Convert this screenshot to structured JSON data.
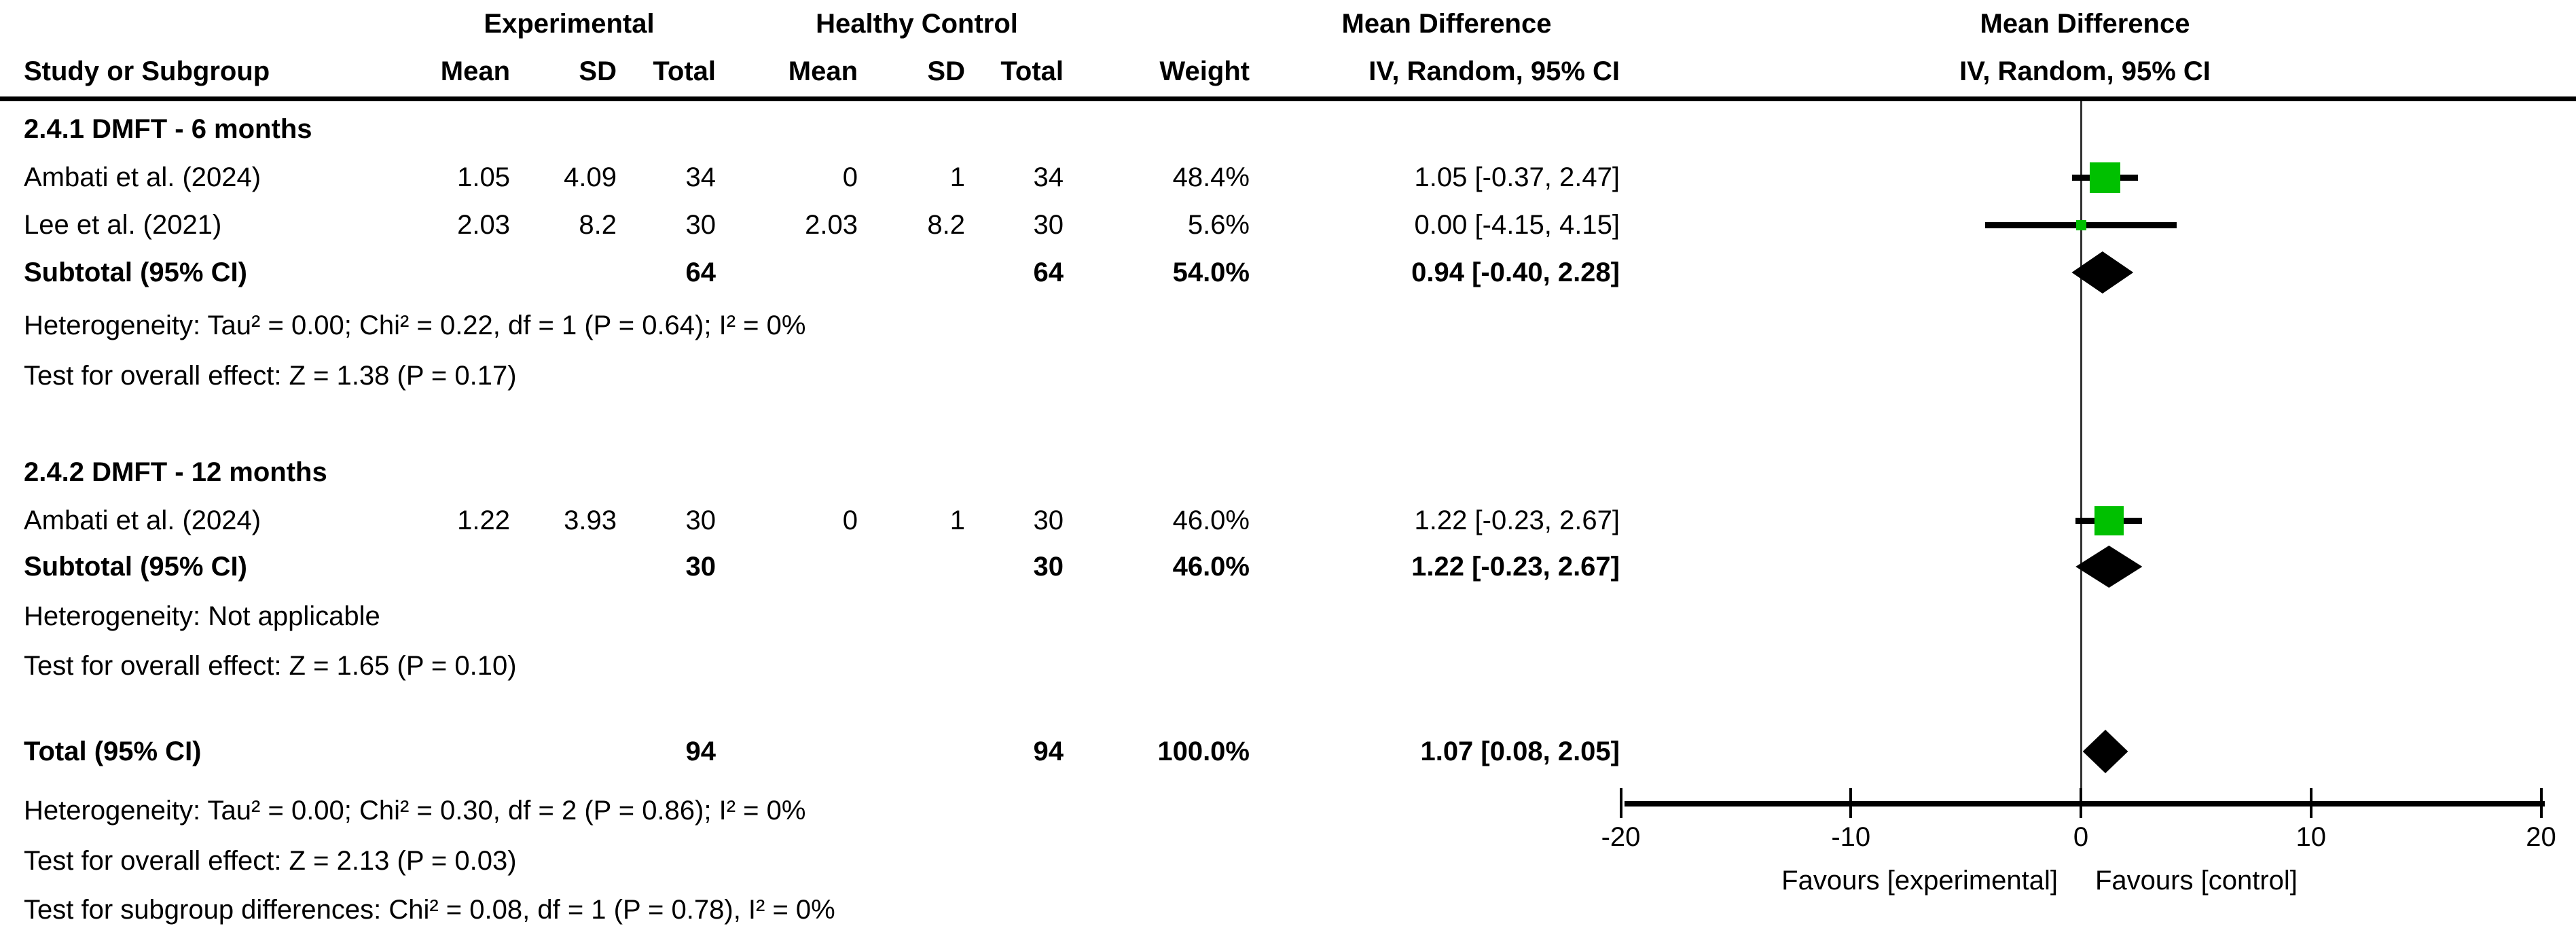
{
  "header": {
    "group_experimental": "Experimental",
    "group_control": "Healthy Control",
    "group_md": "Mean Difference",
    "group_md_plot": "Mean Difference",
    "study": "Study or Subgroup",
    "mean1": "Mean",
    "sd1": "SD",
    "total1": "Total",
    "mean2": "Mean",
    "sd2": "SD",
    "total2": "Total",
    "weight": "Weight",
    "ci": "IV, Random, 95% CI",
    "ci_plot": "IV, Random, 95% CI"
  },
  "table": {
    "groups": [
      {
        "title": "2.4.1 DMFT - 6 months",
        "rows": [
          {
            "name": "Ambati et al. (2024)",
            "cells": [
              "1.05",
              "4.09",
              "34",
              "0",
              "1",
              "34",
              "48.4%",
              "1.05 [-0.37, 2.47]"
            ]
          },
          {
            "name": "Lee et al. (2021)",
            "cells": [
              "2.03",
              "8.2",
              "30",
              "2.03",
              "8.2",
              "30",
              "5.6%",
              "0.00 [-4.15, 4.15]"
            ]
          }
        ],
        "subtotal": {
          "name": "Subtotal (95% CI)",
          "cells": [
            "",
            "",
            "64",
            "",
            "",
            "64",
            "54.0%",
            "0.94 [-0.40, 2.28]"
          ]
        },
        "notes": [
          "Heterogeneity: Tau² = 0.00; Chi² = 0.22, df = 1 (P = 0.64); I² = 0%",
          "Test for overall effect: Z = 1.38 (P = 0.17)"
        ]
      },
      {
        "title": "2.4.2 DMFT - 12 months",
        "rows": [
          {
            "name": "Ambati et al. (2024)",
            "cells": [
              "1.22",
              "3.93",
              "30",
              "0",
              "1",
              "30",
              "46.0%",
              "1.22 [-0.23, 2.67]"
            ]
          }
        ],
        "subtotal": {
          "name": "Subtotal (95% CI)",
          "cells": [
            "",
            "",
            "30",
            "",
            "",
            "30",
            "46.0%",
            "1.22 [-0.23, 2.67]"
          ]
        },
        "notes": [
          "Heterogeneity: Not applicable",
          "Test for overall effect: Z = 1.65 (P = 0.10)"
        ]
      }
    ],
    "total": {
      "name": "Total (95% CI)",
      "cells": [
        "",
        "",
        "94",
        "",
        "",
        "94",
        "100.0%",
        "1.07 [0.08, 2.05]"
      ]
    },
    "total_notes": [
      "Heterogeneity: Tau² = 0.00; Chi² = 0.30, df = 2 (P = 0.86); I² = 0%",
      "Test for overall effect: Z = 2.13 (P = 0.03)",
      "Test for subgroup differences: Chi² = 0.08, df = 1 (P = 0.78), I² = 0%"
    ]
  },
  "axis": {
    "tick_labels": [
      "-20",
      "-10",
      "0",
      "10",
      "20"
    ],
    "tick_values": [
      -20,
      -10,
      0,
      10,
      20
    ],
    "favours_left": "Favours [experimental]",
    "favours_right": "Favours [control]"
  },
  "colors": {
    "square_green": "#00c000",
    "diamond_black": "#000000",
    "line_black": "#000000"
  },
  "chart_data": {
    "type": "forest",
    "title": "Mean Difference, IV, Random, 95% CI",
    "effect_measure": "Mean Difference",
    "model": "IV, Random, 95% CI",
    "x_axis": {
      "range": [
        -20,
        20
      ],
      "ticks": [
        -20,
        -10,
        0,
        10,
        20
      ],
      "label_left": "Favours [experimental]",
      "label_right": "Favours [control]"
    },
    "groups": [
      {
        "name": "2.4.1 DMFT - 6 months",
        "studies": [
          {
            "study": "Ambati et al. (2024)",
            "experimental": {
              "mean": 1.05,
              "sd": 4.09,
              "total": 34
            },
            "control": {
              "mean": 0,
              "sd": 1,
              "total": 34
            },
            "weight_pct": 48.4,
            "md": 1.05,
            "ci95": [
              -0.37,
              2.47
            ]
          },
          {
            "study": "Lee et al. (2021)",
            "experimental": {
              "mean": 2.03,
              "sd": 8.2,
              "total": 30
            },
            "control": {
              "mean": 2.03,
              "sd": 8.2,
              "total": 30
            },
            "weight_pct": 5.6,
            "md": 0.0,
            "ci95": [
              -4.15,
              4.15
            ]
          }
        ],
        "subtotal": {
          "total_experimental": 64,
          "total_control": 64,
          "weight_pct": 54.0,
          "md": 0.94,
          "ci95": [
            -0.4,
            2.28
          ]
        },
        "heterogeneity": {
          "tau2": 0.0,
          "chi2": 0.22,
          "df": 1,
          "p": 0.64,
          "i2_pct": 0
        },
        "overall_effect": {
          "z": 1.38,
          "p": 0.17
        }
      },
      {
        "name": "2.4.2 DMFT - 12 months",
        "studies": [
          {
            "study": "Ambati et al. (2024)",
            "experimental": {
              "mean": 1.22,
              "sd": 3.93,
              "total": 30
            },
            "control": {
              "mean": 0,
              "sd": 1,
              "total": 30
            },
            "weight_pct": 46.0,
            "md": 1.22,
            "ci95": [
              -0.23,
              2.67
            ]
          }
        ],
        "subtotal": {
          "total_experimental": 30,
          "total_control": 30,
          "weight_pct": 46.0,
          "md": 1.22,
          "ci95": [
            -0.23,
            2.67
          ]
        },
        "heterogeneity": "Not applicable",
        "overall_effect": {
          "z": 1.65,
          "p": 0.1
        }
      }
    ],
    "total": {
      "total_experimental": 94,
      "total_control": 94,
      "weight_pct": 100.0,
      "md": 1.07,
      "ci95": [
        0.08,
        2.05
      ],
      "heterogeneity": {
        "tau2": 0.0,
        "chi2": 0.3,
        "df": 2,
        "p": 0.86,
        "i2_pct": 0
      },
      "overall_effect": {
        "z": 2.13,
        "p": 0.03
      },
      "subgroup_differences": {
        "chi2": 0.08,
        "df": 1,
        "p": 0.78,
        "i2_pct": 0
      }
    }
  }
}
